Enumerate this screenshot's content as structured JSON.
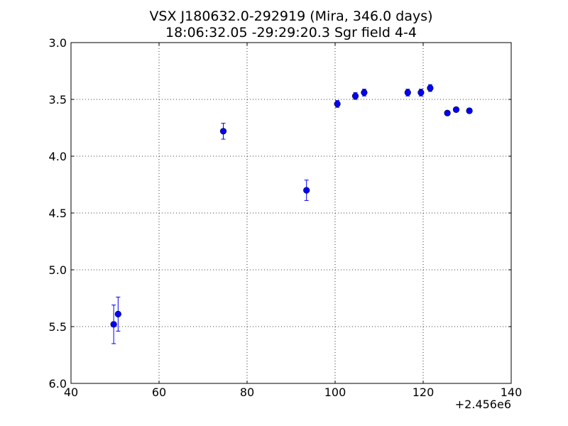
{
  "chart_data": {
    "type": "scatter",
    "title": "VSX J180632.0-292919 (Mira, 346.0 days)",
    "subtitle": "18:06:32.05 -29:29:20.3 Sgr field 4-4",
    "xlabel": "",
    "ylabel": "",
    "x_offset_label": "+2.456e6",
    "xlim": [
      40,
      140
    ],
    "ylim": [
      6.0,
      3.0
    ],
    "y_inverted": true,
    "x_ticks": [
      "40",
      "60",
      "80",
      "100",
      "120",
      "140"
    ],
    "y_ticks": [
      "3.0",
      "3.5",
      "4.0",
      "4.5",
      "5.0",
      "5.5",
      "6.0"
    ],
    "grid": true,
    "marker_color": "#0000ff",
    "errorbar_color": "#0000ff",
    "series": [
      {
        "points": [
          {
            "x": 49.7,
            "y": 5.48,
            "err": 0.17
          },
          {
            "x": 50.7,
            "y": 5.39,
            "err": 0.15
          },
          {
            "x": 74.6,
            "y": 3.78,
            "err": 0.07
          },
          {
            "x": 93.5,
            "y": 4.3,
            "err": 0.09
          },
          {
            "x": 100.5,
            "y": 3.54,
            "err": 0.03
          },
          {
            "x": 104.6,
            "y": 3.47,
            "err": 0.03
          },
          {
            "x": 106.6,
            "y": 3.44,
            "err": 0.03
          },
          {
            "x": 116.5,
            "y": 3.44,
            "err": 0.03
          },
          {
            "x": 119.5,
            "y": 3.44,
            "err": 0.03
          },
          {
            "x": 121.6,
            "y": 3.4,
            "err": 0.03
          },
          {
            "x": 125.5,
            "y": 3.62,
            "err": 0.02
          },
          {
            "x": 127.5,
            "y": 3.59,
            "err": 0.02
          },
          {
            "x": 130.5,
            "y": 3.6,
            "err": 0.02
          }
        ]
      }
    ]
  }
}
